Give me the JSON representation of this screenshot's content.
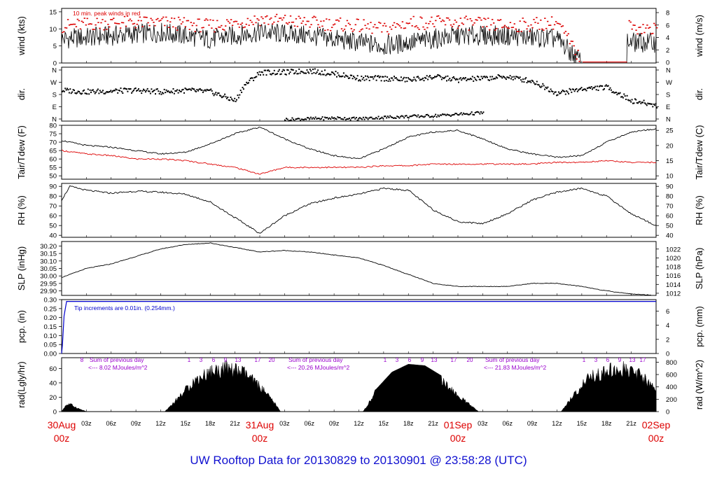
{
  "title": "UW Rooftop Data for 20130829  to  20130901 @ 23:58:28  (UTC)",
  "colors": {
    "peak": "#dd0000",
    "date": "#dd0000",
    "annotation": "#9900cc",
    "precip": "#0000cc",
    "title": "#1010d0"
  },
  "chart_data": [
    {
      "type": "line",
      "ylabel_left": "wind (kts)",
      "ylabel_right": "wind (m/s)",
      "left_ticks": [
        "0",
        "5",
        "10",
        "15"
      ],
      "right_ticks": [
        "0",
        "2",
        "4",
        "6",
        "8"
      ],
      "ylim": [
        0,
        16
      ],
      "annotation": "10 min. peak winds in red",
      "series": [
        {
          "name": "10 min. peak winds",
          "color": "#dd0000",
          "x": [
            0,
            6,
            12,
            18,
            24,
            30,
            36,
            39,
            42,
            48,
            54,
            60,
            63,
            64,
            68,
            72
          ],
          "values": [
            11,
            12,
            12,
            11,
            13,
            12,
            11,
            10,
            12,
            12,
            11,
            12,
            0,
            0,
            11,
            10
          ]
        },
        {
          "color": "#000000",
          "x": [
            0,
            6,
            12,
            18,
            24,
            30,
            36,
            39,
            42,
            48,
            54,
            60,
            63,
            64,
            68,
            72
          ],
          "values": [
            7,
            8,
            9,
            7,
            9,
            8,
            6,
            5,
            6,
            8,
            8,
            7,
            0,
            0,
            6,
            6
          ]
        }
      ]
    },
    {
      "type": "scatter",
      "ylabel_left": "dir.",
      "ylabel_right": "dir.",
      "left_ticks": [
        "N",
        "E",
        "S",
        "W",
        "N"
      ],
      "right_ticks": [
        "N",
        "E",
        "S",
        "W",
        "N"
      ],
      "ylim": [
        0,
        360
      ],
      "series": [
        {
          "x": [
            0,
            3,
            6,
            9,
            12,
            15,
            18,
            21,
            22,
            24,
            27,
            30,
            33,
            36,
            39,
            42,
            45,
            48,
            51,
            54,
            57,
            60,
            63,
            66,
            69,
            72
          ],
          "values": [
            210,
            200,
            205,
            210,
            200,
            210,
            200,
            140,
            240,
            330,
            330,
            340,
            320,
            290,
            290,
            280,
            300,
            280,
            290,
            300,
            270,
            190,
            220,
            230,
            140,
            110
          ]
        },
        {
          "x": [
            27,
            30,
            33,
            36,
            39,
            45,
            51
          ],
          "values": [
            15,
            20,
            25,
            20,
            30,
            40,
            60
          ]
        }
      ]
    },
    {
      "type": "line",
      "ylabel_left": "Tair/Tdew (F)",
      "ylabel_right": "Tair/Tdew (C)",
      "left_ticks": [
        "50",
        "55",
        "60",
        "65",
        "70",
        "75",
        "80"
      ],
      "right_ticks": [
        "10",
        "15",
        "20",
        "25"
      ],
      "ylim": [
        48,
        80
      ],
      "series": [
        {
          "color": "#000000",
          "x": [
            0,
            3,
            6,
            9,
            12,
            15,
            18,
            21,
            24,
            27,
            30,
            33,
            36,
            39,
            42,
            45,
            48,
            51,
            54,
            57,
            60,
            63,
            66,
            69,
            72
          ],
          "values": [
            71,
            68,
            67,
            65,
            63,
            64,
            69,
            75,
            79,
            72,
            66,
            62,
            60,
            66,
            73,
            76,
            77,
            72,
            66,
            63,
            61,
            62,
            70,
            76,
            78
          ]
        },
        {
          "color": "#dd0000",
          "x": [
            0,
            3,
            6,
            9,
            12,
            15,
            18,
            21,
            24,
            27,
            30,
            33,
            36,
            39,
            42,
            45,
            48,
            51,
            54,
            57,
            60,
            63,
            66,
            69,
            72
          ],
          "values": [
            65,
            63,
            62,
            60,
            60,
            59,
            57,
            55,
            51,
            55,
            55,
            55,
            55,
            56,
            56,
            57,
            57,
            57,
            57,
            57,
            58,
            58,
            59,
            58,
            58
          ]
        }
      ]
    },
    {
      "type": "line",
      "ylabel_left": "RH (%)",
      "ylabel_right": "RH (%)",
      "left_ticks": [
        "40",
        "50",
        "60",
        "70",
        "80",
        "90"
      ],
      "right_ticks": [
        "40",
        "50",
        "60",
        "70",
        "80",
        "90"
      ],
      "ylim": [
        38,
        93
      ],
      "series": [
        {
          "x": [
            0,
            1,
            3,
            6,
            9,
            12,
            15,
            18,
            21,
            24,
            27,
            30,
            33,
            36,
            39,
            42,
            45,
            48,
            51,
            54,
            57,
            60,
            63,
            66,
            69,
            72
          ],
          "values": [
            76,
            90,
            86,
            83,
            85,
            84,
            82,
            74,
            58,
            42,
            60,
            72,
            78,
            82,
            88,
            86,
            66,
            54,
            52,
            62,
            76,
            84,
            88,
            80,
            62,
            50
          ]
        }
      ]
    },
    {
      "type": "line",
      "ylabel_left": "SLP (inHg)",
      "ylabel_right": "SLP (hPa)",
      "left_ticks": [
        "29.90",
        "29.95",
        "30.00",
        "30.05",
        "30.10",
        "30.15",
        "30.20"
      ],
      "right_ticks": [
        "1012",
        "1014",
        "1016",
        "1018",
        "1020",
        "1022"
      ],
      "ylim": [
        29.87,
        30.23
      ],
      "series": [
        {
          "x": [
            0,
            3,
            6,
            9,
            12,
            15,
            18,
            21,
            24,
            27,
            30,
            33,
            36,
            39,
            42,
            45,
            48,
            51,
            54,
            57,
            60,
            63,
            66,
            69,
            72
          ],
          "values": [
            29.99,
            30.05,
            30.08,
            30.13,
            30.18,
            30.21,
            30.22,
            30.19,
            30.16,
            30.17,
            30.16,
            30.14,
            30.12,
            30.07,
            30.01,
            29.95,
            29.93,
            29.93,
            29.93,
            29.95,
            29.95,
            29.93,
            29.9,
            29.88,
            29.87
          ]
        }
      ]
    },
    {
      "type": "line",
      "ylabel_left": "pcp. (in)",
      "ylabel_right": "pcp. (mm)",
      "left_ticks": [
        "0.00",
        "0.05",
        "0.10",
        "0.15",
        "0.20",
        "0.25",
        "0.30"
      ],
      "right_ticks": [
        "0",
        "2",
        "4",
        "6"
      ],
      "ylim": [
        0,
        0.3
      ],
      "annotation": "Tip increments are 0.01in. (0.254mm.)",
      "series": [
        {
          "color": "#0000cc",
          "x": [
            0,
            0.1,
            0.3,
            0.6,
            72
          ],
          "values": [
            0,
            0.05,
            0.21,
            0.29,
            0.29
          ]
        }
      ]
    },
    {
      "type": "area",
      "ylabel_left": "rad(Lgly/hr)",
      "ylabel_right": "rad (W/m^2)",
      "left_ticks": [
        "0",
        "20",
        "40",
        "60"
      ],
      "right_ticks": [
        "0",
        "200",
        "400",
        "600",
        "800"
      ],
      "ylim": [
        0,
        75
      ],
      "annotations": [
        {
          "text": "Sum of previous day",
          "value": "<--- 8.02 MJoules/m^2"
        },
        {
          "text": "Sum of previous day",
          "value": "<--- 20.26 MJoules/m^2"
        },
        {
          "text": "Sum of previous day",
          "value": "<--- 21.83 MJoules/m^2"
        }
      ],
      "hour_labels": [
        "8",
        "1",
        "3",
        "6",
        "9",
        "13",
        "17",
        "20",
        "1",
        "3",
        "6",
        "9",
        "13",
        "17",
        "20",
        "1",
        "3",
        "6",
        "9",
        "13",
        "17"
      ],
      "series": [
        {
          "x": [
            0,
            0.5,
            1,
            2,
            3,
            12.5,
            14,
            16,
            18,
            20,
            22,
            24,
            26,
            26.5,
            36.5,
            38,
            40,
            42,
            44,
            46,
            48,
            50,
            50.5,
            60.5,
            62,
            64,
            66,
            68,
            70,
            72
          ],
          "values": [
            0,
            10,
            12,
            5,
            0,
            0,
            20,
            48,
            63,
            68,
            62,
            40,
            10,
            0,
            0,
            30,
            55,
            66,
            64,
            50,
            25,
            5,
            0,
            0,
            26,
            55,
            64,
            68,
            58,
            35
          ]
        }
      ]
    }
  ],
  "x_axis": {
    "xlim": [
      0,
      72
    ],
    "hour_ticks": [
      "03z",
      "06z",
      "09z",
      "12z",
      "15z",
      "18z",
      "21z",
      "03z",
      "06z",
      "09z",
      "12z",
      "15z",
      "18z",
      "21z",
      "03z",
      "06z",
      "09z",
      "12z",
      "15z",
      "18z",
      "21z"
    ],
    "dates": [
      {
        "date": "30Aug",
        "hour": "00z"
      },
      {
        "date": "31Aug",
        "hour": "00z"
      },
      {
        "date": "01Sep",
        "hour": "00z"
      },
      {
        "date": "02Sep",
        "hour": "00z"
      }
    ]
  }
}
